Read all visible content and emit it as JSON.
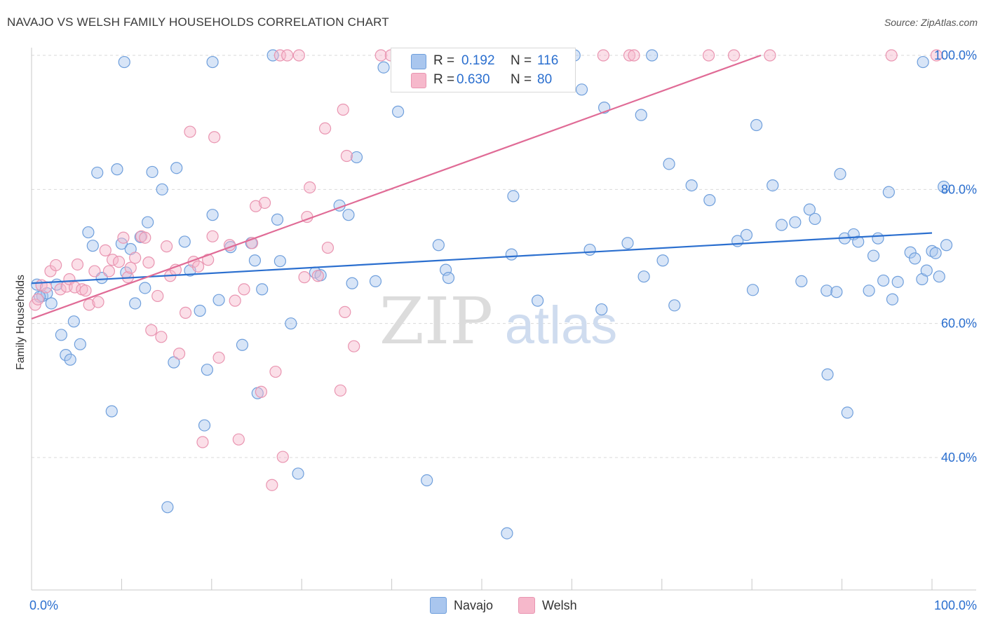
{
  "title": "NAVAJO VS WELSH FAMILY HOUSEHOLDS CORRELATION CHART",
  "source": "Source: ZipAtlas.com",
  "watermark": {
    "zip": "ZIP",
    "atlas": "atlas"
  },
  "colors": {
    "navajo_fill": "#a9c6ee",
    "navajo_stroke": "#6f9fdc",
    "navajo_line": "#2b6fcf",
    "welsh_fill": "#f6b8cb",
    "welsh_stroke": "#e995b1",
    "welsh_line": "#e06b96",
    "value_blue": "#2b6fcf",
    "grid": "#d9d9d9"
  },
  "stats": {
    "navajo": {
      "r_label": "R =",
      "r_value": "0.192",
      "n_label": "N =",
      "n_value": "116"
    },
    "welsh": {
      "r_label": "R =",
      "r_value": "0.630",
      "n_label": "N =",
      "n_value": "80"
    }
  },
  "legend": {
    "navajo": "Navajo",
    "welsh": "Welsh"
  },
  "chart_data": {
    "type": "scatter",
    "title": "NAVAJO VS WELSH FAMILY HOUSEHOLDS CORRELATION CHART",
    "xlabel": "",
    "ylabel": "Family Households",
    "xlim": [
      0,
      100
    ],
    "ylim": [
      20,
      102
    ],
    "x_tick_labels": [
      {
        "value": 0,
        "label": "0.0%"
      },
      {
        "value": 100,
        "label": "100.0%"
      }
    ],
    "y_tick_labels": [
      {
        "value": 40,
        "label": "40.0%"
      },
      {
        "value": 60,
        "label": "60.0%"
      },
      {
        "value": 80,
        "label": "80.0%"
      },
      {
        "value": 100,
        "label": "100.0%"
      }
    ],
    "grid": true,
    "legend_position": "bottom-center",
    "series": [
      {
        "name": "Navajo",
        "trend": {
          "x": [
            0,
            100
          ],
          "y": [
            66.0,
            73.5
          ]
        },
        "points": [
          [
            0.6,
            65.8
          ],
          [
            1.2,
            64.1
          ],
          [
            1.7,
            64.5
          ],
          [
            2.2,
            63.0
          ],
          [
            2.8,
            65.8
          ],
          [
            3.3,
            58.3
          ],
          [
            3.8,
            55.3
          ],
          [
            4.3,
            54.6
          ],
          [
            4.7,
            60.3
          ],
          [
            5.4,
            56.9
          ],
          [
            6.3,
            73.6
          ],
          [
            6.8,
            71.6
          ],
          [
            7.3,
            82.5
          ],
          [
            7.8,
            66.8
          ],
          [
            8.9,
            46.9
          ],
          [
            9.5,
            83.0
          ],
          [
            10.0,
            71.9
          ],
          [
            10.5,
            67.6
          ],
          [
            11.0,
            71.1
          ],
          [
            11.5,
            63.0
          ],
          [
            12.1,
            72.9
          ],
          [
            12.6,
            65.3
          ],
          [
            12.9,
            75.1
          ],
          [
            13.4,
            82.6
          ],
          [
            14.5,
            80.0
          ],
          [
            15.1,
            32.6
          ],
          [
            15.8,
            54.2
          ],
          [
            16.1,
            83.2
          ],
          [
            17.0,
            72.2
          ],
          [
            17.6,
            67.9
          ],
          [
            18.7,
            61.9
          ],
          [
            19.2,
            44.8
          ],
          [
            19.5,
            53.1
          ],
          [
            20.1,
            76.2
          ],
          [
            20.8,
            63.5
          ],
          [
            22.1,
            71.4
          ],
          [
            23.4,
            56.8
          ],
          [
            24.4,
            72.0
          ],
          [
            24.8,
            69.4
          ],
          [
            25.1,
            49.6
          ],
          [
            25.6,
            65.1
          ],
          [
            26.8,
            100.0
          ],
          [
            27.3,
            75.5
          ],
          [
            27.6,
            69.3
          ],
          [
            28.8,
            60.0
          ],
          [
            29.6,
            37.6
          ],
          [
            31.5,
            67.6
          ],
          [
            32.1,
            67.2
          ],
          [
            34.2,
            77.6
          ],
          [
            35.2,
            76.2
          ],
          [
            35.6,
            66.0
          ],
          [
            36.1,
            84.8
          ],
          [
            38.2,
            66.3
          ],
          [
            39.1,
            98.2
          ],
          [
            40.7,
            91.6
          ],
          [
            43.9,
            36.6
          ],
          [
            45.2,
            71.7
          ],
          [
            46.0,
            68.0
          ],
          [
            46.3,
            66.8
          ],
          [
            48.2,
            100.0
          ],
          [
            52.8,
            28.7
          ],
          [
            53.3,
            70.3
          ],
          [
            53.5,
            79.0
          ],
          [
            56.2,
            63.4
          ],
          [
            60.3,
            100.0
          ],
          [
            61.1,
            94.9
          ],
          [
            62.0,
            71.0
          ],
          [
            63.3,
            62.1
          ],
          [
            63.6,
            92.2
          ],
          [
            66.2,
            72.0
          ],
          [
            67.7,
            91.1
          ],
          [
            68.0,
            67.0
          ],
          [
            68.9,
            100.0
          ],
          [
            70.1,
            69.4
          ],
          [
            70.8,
            83.8
          ],
          [
            71.4,
            62.7
          ],
          [
            73.3,
            80.6
          ],
          [
            75.3,
            78.4
          ],
          [
            78.4,
            72.3
          ],
          [
            79.4,
            73.2
          ],
          [
            80.1,
            65.0
          ],
          [
            80.5,
            89.6
          ],
          [
            82.3,
            80.6
          ],
          [
            83.3,
            74.7
          ],
          [
            84.8,
            75.1
          ],
          [
            85.5,
            66.3
          ],
          [
            86.4,
            77.0
          ],
          [
            87.0,
            75.6
          ],
          [
            88.3,
            64.9
          ],
          [
            88.4,
            52.4
          ],
          [
            89.4,
            64.7
          ],
          [
            89.8,
            82.3
          ],
          [
            90.3,
            72.7
          ],
          [
            90.6,
            46.7
          ],
          [
            91.3,
            73.3
          ],
          [
            91.8,
            72.2
          ],
          [
            93.0,
            64.9
          ],
          [
            93.5,
            70.1
          ],
          [
            94.0,
            72.7
          ],
          [
            94.6,
            66.4
          ],
          [
            95.2,
            79.6
          ],
          [
            95.6,
            63.6
          ],
          [
            96.2,
            66.2
          ],
          [
            97.6,
            70.6
          ],
          [
            98.1,
            69.7
          ],
          [
            98.9,
            66.6
          ],
          [
            99.4,
            67.9
          ],
          [
            100.0,
            70.8
          ],
          [
            100.4,
            70.5
          ],
          [
            100.8,
            67.0
          ],
          [
            101.3,
            80.4
          ],
          [
            101.6,
            71.7
          ],
          [
            0.9,
            64.0
          ],
          [
            10.3,
            99.0
          ],
          [
            20.1,
            99.0
          ],
          [
            99.0,
            99.0
          ]
        ]
      },
      {
        "name": "Welsh",
        "trend": {
          "x": [
            0,
            81
          ],
          "y": [
            60.7,
            100.0
          ]
        },
        "points": [
          [
            0.4,
            62.8
          ],
          [
            0.7,
            63.6
          ],
          [
            1.1,
            65.7
          ],
          [
            1.6,
            65.4
          ],
          [
            2.1,
            67.8
          ],
          [
            2.7,
            68.7
          ],
          [
            3.2,
            65.1
          ],
          [
            3.9,
            65.5
          ],
          [
            4.2,
            66.6
          ],
          [
            4.8,
            65.4
          ],
          [
            5.1,
            68.8
          ],
          [
            5.6,
            65.1
          ],
          [
            6.0,
            64.9
          ],
          [
            6.4,
            62.8
          ],
          [
            7.0,
            67.8
          ],
          [
            7.4,
            63.2
          ],
          [
            8.2,
            70.9
          ],
          [
            8.6,
            67.8
          ],
          [
            9.0,
            69.5
          ],
          [
            9.7,
            69.2
          ],
          [
            10.2,
            72.8
          ],
          [
            10.7,
            66.9
          ],
          [
            11.0,
            68.3
          ],
          [
            11.5,
            69.8
          ],
          [
            12.2,
            73.0
          ],
          [
            12.6,
            72.8
          ],
          [
            13.0,
            69.1
          ],
          [
            13.3,
            59.0
          ],
          [
            14.0,
            64.1
          ],
          [
            14.4,
            58.0
          ],
          [
            15.0,
            71.5
          ],
          [
            15.4,
            67.1
          ],
          [
            16.0,
            68.0
          ],
          [
            16.4,
            55.5
          ],
          [
            17.1,
            61.6
          ],
          [
            17.6,
            88.6
          ],
          [
            18.0,
            69.2
          ],
          [
            18.5,
            68.5
          ],
          [
            19.0,
            42.3
          ],
          [
            19.6,
            69.5
          ],
          [
            20.1,
            73.0
          ],
          [
            20.3,
            87.8
          ],
          [
            20.8,
            54.9
          ],
          [
            22.0,
            71.7
          ],
          [
            22.6,
            63.4
          ],
          [
            23.0,
            42.7
          ],
          [
            23.6,
            65.1
          ],
          [
            24.5,
            72.0
          ],
          [
            24.9,
            77.5
          ],
          [
            25.5,
            49.8
          ],
          [
            25.9,
            78.0
          ],
          [
            26.7,
            35.9
          ],
          [
            27.1,
            52.8
          ],
          [
            27.6,
            100.0
          ],
          [
            27.9,
            40.1
          ],
          [
            28.4,
            100.0
          ],
          [
            29.7,
            100.0
          ],
          [
            30.3,
            66.9
          ],
          [
            30.6,
            75.9
          ],
          [
            30.9,
            80.3
          ],
          [
            31.8,
            67.1
          ],
          [
            32.6,
            89.1
          ],
          [
            32.9,
            71.3
          ],
          [
            34.3,
            50.0
          ],
          [
            34.6,
            91.9
          ],
          [
            34.8,
            61.7
          ],
          [
            35.0,
            85.0
          ],
          [
            35.8,
            56.6
          ],
          [
            38.8,
            100.0
          ],
          [
            39.9,
            100.0
          ],
          [
            41.0,
            100.0
          ],
          [
            47.4,
            100.0
          ],
          [
            63.5,
            100.0
          ],
          [
            66.4,
            100.0
          ],
          [
            66.9,
            100.0
          ],
          [
            75.2,
            100.0
          ],
          [
            78.0,
            100.0
          ],
          [
            82.0,
            100.0
          ],
          [
            95.5,
            100.0
          ],
          [
            100.5,
            100.0
          ]
        ]
      }
    ]
  }
}
